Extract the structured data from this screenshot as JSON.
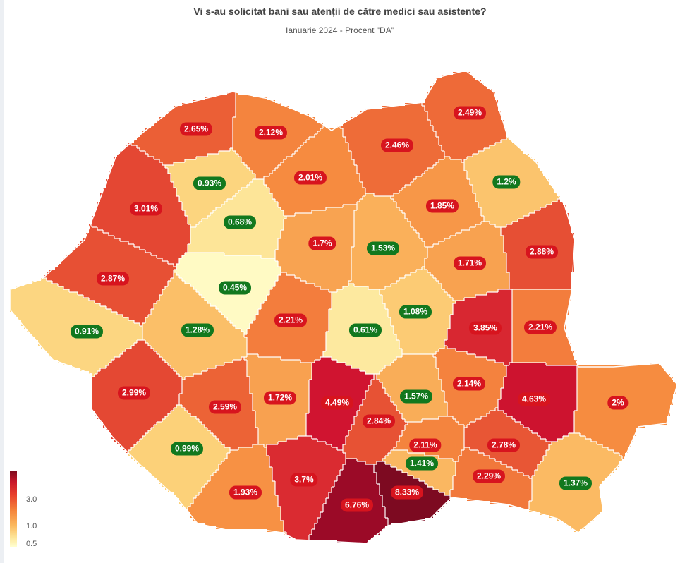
{
  "title": "Vi s-au solicitat bani sau atenții de către medici sau asistente?",
  "subtitle": "Ianuarie 2024 - Procent \"DA\"",
  "legend": {
    "ticks": [
      "3.0",
      "1.0",
      "0.5"
    ],
    "colors": [
      "#7a0a1e",
      "#c9182b",
      "#e8402c",
      "#f4833a",
      "#fbb95e",
      "#fde69a",
      "#ffffd0"
    ]
  },
  "map_data": {
    "units": "percent",
    "values": [
      {
        "label": "2.65%",
        "value": 2.65
      },
      {
        "label": "2.12%",
        "value": 2.12
      },
      {
        "label": "2.46%",
        "value": 2.46
      },
      {
        "label": "2.49%",
        "value": 2.49
      },
      {
        "label": "3.01%",
        "value": 3.01
      },
      {
        "label": "0.93%",
        "value": 0.93
      },
      {
        "label": "2.01%",
        "value": 2.01
      },
      {
        "label": "1.2%",
        "value": 1.2
      },
      {
        "label": "1.85%",
        "value": 1.85
      },
      {
        "label": "0.68%",
        "value": 0.68
      },
      {
        "label": "1.7%",
        "value": 1.7
      },
      {
        "label": "1.53%",
        "value": 1.53
      },
      {
        "label": "1.71%",
        "value": 1.71
      },
      {
        "label": "2.88%",
        "value": 2.88
      },
      {
        "label": "2.87%",
        "value": 2.87
      },
      {
        "label": "0.45%",
        "value": 0.45
      },
      {
        "label": "2.21%",
        "value": 2.21
      },
      {
        "label": "1.08%",
        "value": 1.08
      },
      {
        "label": "0.91%",
        "value": 0.91
      },
      {
        "label": "1.28%",
        "value": 1.28
      },
      {
        "label": "0.61%",
        "value": 0.61
      },
      {
        "label": "3.85%",
        "value": 3.85
      },
      {
        "label": "2.21%",
        "value": 2.21
      },
      {
        "label": "2.99%",
        "value": 2.99
      },
      {
        "label": "2.59%",
        "value": 2.59
      },
      {
        "label": "1.72%",
        "value": 1.72
      },
      {
        "label": "4.49%",
        "value": 4.49
      },
      {
        "label": "1.57%",
        "value": 1.57
      },
      {
        "label": "2.14%",
        "value": 2.14
      },
      {
        "label": "4.63%",
        "value": 4.63
      },
      {
        "label": "2%",
        "value": 2.0
      },
      {
        "label": "2.84%",
        "value": 2.84
      },
      {
        "label": "0.99%",
        "value": 0.99
      },
      {
        "label": "2.11%",
        "value": 2.11
      },
      {
        "label": "2.78%",
        "value": 2.78
      },
      {
        "label": "1.41%",
        "value": 1.41
      },
      {
        "label": "1.93%",
        "value": 1.93
      },
      {
        "label": "3.7%",
        "value": 3.7
      },
      {
        "label": "6.76%",
        "value": 6.76
      },
      {
        "label": "8.33%",
        "value": 8.33
      },
      {
        "label": "2.29%",
        "value": 2.29
      },
      {
        "label": "1.37%",
        "value": 1.37
      }
    ]
  }
}
